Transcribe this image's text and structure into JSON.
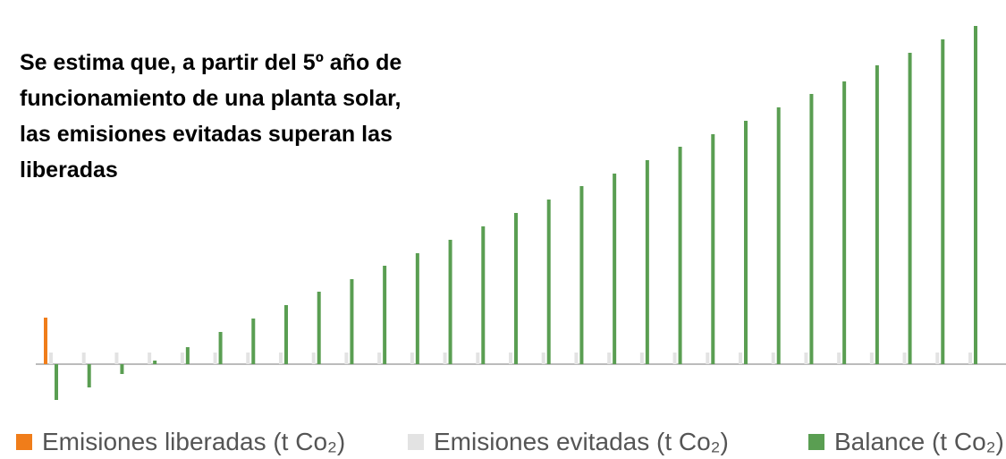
{
  "chart_data": {
    "type": "bar",
    "title": "Se estima que, a partir del 5º año de funcionamiento de una planta solar, las emisiones evitadas superan las liberadas",
    "categories": [
      null,
      null,
      null,
      null,
      null,
      null,
      null,
      null,
      null,
      null,
      null,
      null,
      null,
      null,
      null,
      null,
      null,
      null,
      null,
      null,
      null,
      null,
      null,
      null,
      null,
      null,
      null,
      null,
      null
    ],
    "series": [
      {
        "name": "Emisiones liberadas (t Co₂)",
        "color": "#f07d1a",
        "values": [
          52,
          null,
          null,
          null,
          null,
          null,
          null,
          null,
          null,
          null,
          null,
          null,
          null,
          null,
          null,
          null,
          null,
          null,
          null,
          null,
          null,
          null,
          null,
          null,
          null,
          null,
          null,
          null,
          null
        ]
      },
      {
        "name": "Emisiones evitadas (t Co₂)",
        "color": "#e3e3e3",
        "values": [
          13,
          13,
          13,
          13,
          13,
          13,
          13,
          13,
          13,
          13,
          13,
          13,
          13,
          13,
          13,
          13,
          13,
          13,
          13,
          13,
          13,
          13,
          13,
          13,
          13,
          13,
          13,
          13,
          13
        ]
      },
      {
        "name": "Balance (t Co₂)",
        "color": "#5a9e52",
        "values": [
          -40,
          -26,
          -11,
          4,
          19,
          36,
          51,
          66,
          81,
          95,
          110,
          124,
          139,
          154,
          169,
          184,
          199,
          213,
          228,
          243,
          257,
          272,
          287,
          302,
          316,
          334,
          348,
          363,
          378
        ]
      }
    ],
    "ylim": [
      -60,
      390
    ]
  }
}
